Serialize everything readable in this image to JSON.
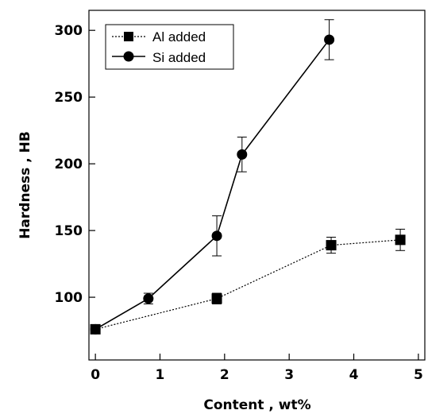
{
  "chart_data": {
    "type": "line",
    "xlabel": "Content , wt%",
    "ylabel": "Hardness , HB",
    "xlim": [
      -0.1,
      5.1
    ],
    "ylim": [
      53,
      315
    ],
    "x_ticks": [
      0,
      1,
      2,
      3,
      4,
      5
    ],
    "x_tick_labels": [
      "0",
      "1",
      "2",
      "3",
      "4",
      "5"
    ],
    "y_ticks": [
      100,
      150,
      200,
      250,
      300
    ],
    "y_tick_labels": [
      "100",
      "150",
      "200",
      "250",
      "300"
    ],
    "grid": false,
    "legend_position": "top-left",
    "series": [
      {
        "name": "Al added",
        "marker": "square",
        "line_style": "dotted",
        "color": "#000000",
        "points": [
          {
            "x": 0.0,
            "y": 76,
            "err": 0
          },
          {
            "x": 1.88,
            "y": 99,
            "err": 4
          },
          {
            "x": 3.65,
            "y": 139,
            "err": 6
          },
          {
            "x": 4.72,
            "y": 143,
            "err": 8
          }
        ]
      },
      {
        "name": "Si added",
        "marker": "circle",
        "line_style": "solid",
        "color": "#000000",
        "points": [
          {
            "x": 0.0,
            "y": 76,
            "err": 0
          },
          {
            "x": 0.82,
            "y": 99,
            "err": 4
          },
          {
            "x": 1.88,
            "y": 146,
            "err": 15
          },
          {
            "x": 2.27,
            "y": 207,
            "err": 13
          },
          {
            "x": 3.62,
            "y": 293,
            "err": 15
          }
        ]
      }
    ]
  }
}
